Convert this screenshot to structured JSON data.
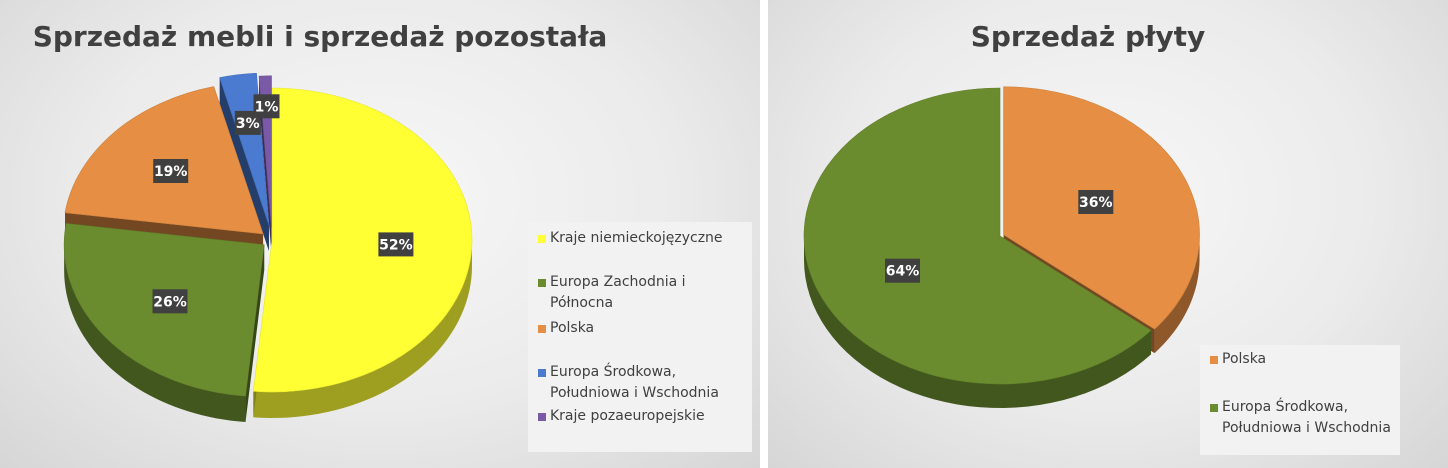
{
  "chart_data": [
    {
      "type": "pie",
      "title": "Sprzedaż mebli i sprzedaż pozostała",
      "categories": [
        "Kraje niemieckojęzyczne",
        "Europa Zachodnia i Północna",
        "Polska",
        "Europa Środkowa, Południowa i Wschodnia",
        "Kraje pozaeuropejskie"
      ],
      "values": [
        52,
        26,
        19,
        3,
        1
      ],
      "data_labels": [
        "52%",
        "26%",
        "19%",
        "3%",
        "1%"
      ],
      "colors": [
        "#ffff33",
        "#6b8c2e",
        "#e58e44",
        "#4a7bd1",
        "#7a5aa6"
      ],
      "legend_position": "right"
    },
    {
      "type": "pie",
      "title": "Sprzedaż płyty",
      "categories": [
        "Polska",
        "Europa Środkowa, Południowa i Wschodnia"
      ],
      "values": [
        36,
        64
      ],
      "data_labels": [
        "36%",
        "64%"
      ],
      "colors": [
        "#e58e44",
        "#6b8c2e"
      ],
      "legend_position": "bottom-right"
    }
  ]
}
